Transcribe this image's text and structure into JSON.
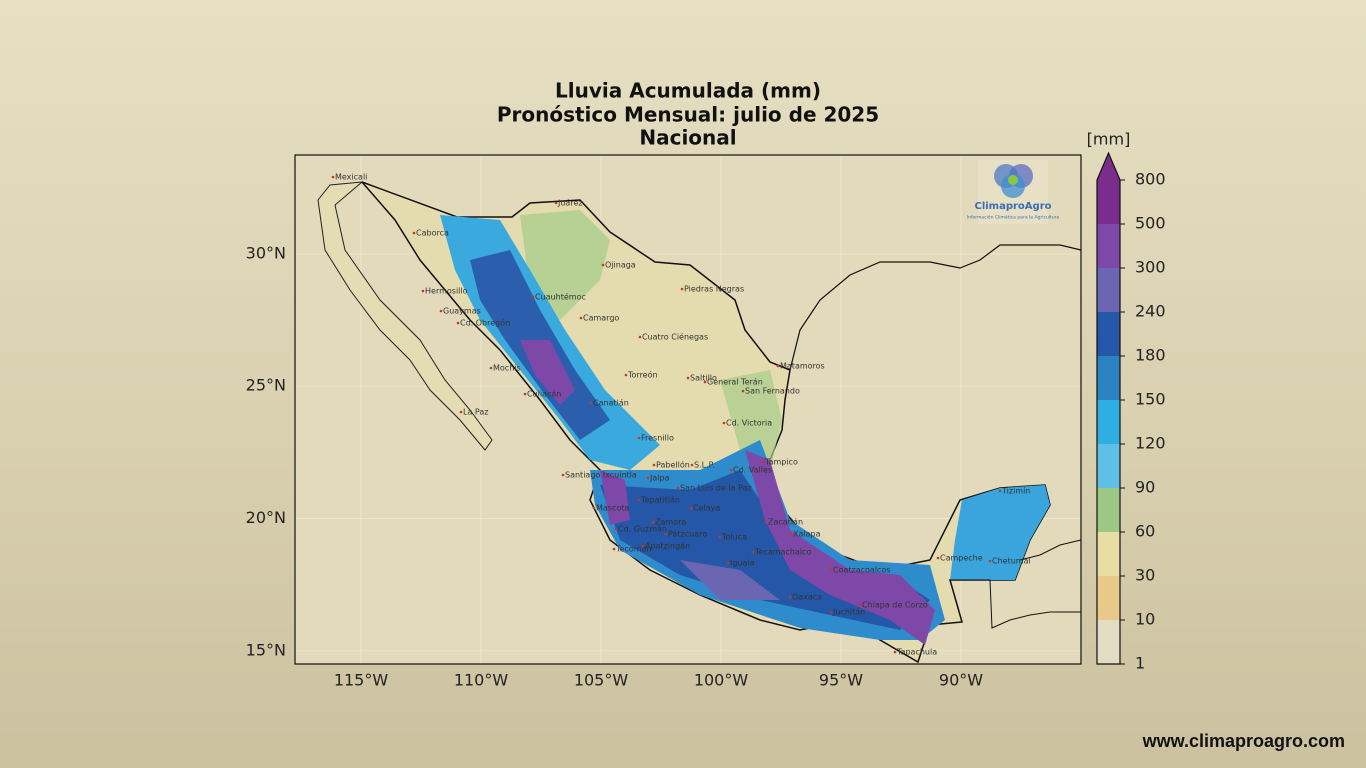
{
  "title": [
    "Lluvia Acumulada (mm)",
    "Pronóstico Mensual: julio de 2025",
    "Nacional"
  ],
  "map": {
    "lonlim": [
      -117.75,
      -85.0
    ],
    "latlim": [
      14.5,
      33.74
    ],
    "xticks": [
      {
        "value": -115,
        "label": "115°W"
      },
      {
        "value": -110,
        "label": "110°W"
      },
      {
        "value": -105,
        "label": "105°W"
      },
      {
        "value": -100,
        "label": "100°W"
      },
      {
        "value": -95,
        "label": "95°W"
      },
      {
        "value": -90,
        "label": "90°W"
      }
    ],
    "yticks": [
      {
        "value": 15,
        "label": "15°N"
      },
      {
        "value": 20,
        "label": "20°N"
      },
      {
        "value": 25,
        "label": "25°N"
      },
      {
        "value": 30,
        "label": "30°N"
      }
    ],
    "grid": true,
    "cities": [
      "Mexicali",
      "Juárez",
      "Caborca",
      "Ojinaga",
      "Hermosillo",
      "Piedras Negras",
      "Cuauhtémoc",
      "Guaymas",
      "Cd. Obregón",
      "Camargo",
      "Cuatro Ciénegas",
      "Matamoros",
      "Mochis",
      "Torreón",
      "Saltillo",
      "General Terán",
      "San Fernando",
      "Culiacán",
      "Canatlán",
      "La Paz",
      "Cd. Victoria",
      "Fresnillo",
      "Tampico",
      "Santiago Ixcuintla",
      "Cd. Valles",
      "Pabellón",
      "S.L.P.",
      "Jalpa",
      "San Luis de la Paz",
      "Tepatitlán",
      "Mascota",
      "Celaya",
      "Cd. Guzmán",
      "Zamora",
      "Pátzcuaro",
      "Tecomán",
      "Apatzingán",
      "Toluca",
      "Zacatlán",
      "Xalapa",
      "Tecamachalco",
      "Iguala",
      "Coatzacoalcos",
      "Oaxaca",
      "Juchitán",
      "Chiapa de Corzo",
      "Tapachula",
      "Campeche",
      "Chetumal",
      "Tizimín"
    ]
  },
  "colorbar": {
    "unit": "[mm]",
    "levels": [
      1,
      10,
      30,
      60,
      90,
      120,
      150,
      180,
      240,
      300,
      500,
      800
    ],
    "colors": [
      "#e2dcc4",
      "#e8c98a",
      "#e6dea2",
      "#9cc784",
      "#5fc0e6",
      "#2faee2",
      "#2a82c0",
      "#2457a8",
      "#6b66b2",
      "#7d48a8",
      "#7a2d8d"
    ],
    "extend_color": "#7a2d8d"
  },
  "logo": {
    "name": "ClimaproAgro",
    "tagline": "Información Climática para la Agricultura"
  },
  "footer": "www.climaproagro.com"
}
